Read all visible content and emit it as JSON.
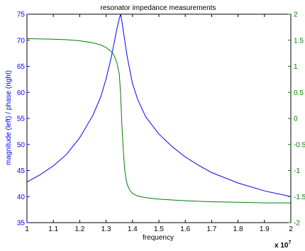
{
  "chart_data": {
    "type": "line",
    "title": "resonator impedance measurements",
    "xlabel": "frequency",
    "ylabel_left": "magnitude (left) / phase (right)",
    "x_multiplier_label": "x 10",
    "x_multiplier_exponent": "7",
    "xlim": [
      1,
      2
    ],
    "ylim_left": [
      35,
      75
    ],
    "ylim_right": [
      -2,
      2
    ],
    "x_ticks": [
      1,
      1.1,
      1.2,
      1.3,
      1.4,
      1.5,
      1.6,
      1.7,
      1.8,
      1.9,
      2
    ],
    "x_tick_labels": [
      "1",
      "1.1",
      "1.2",
      "1.3",
      "1.4",
      "1.5",
      "1.6",
      "1.7",
      "1.8",
      "1.9",
      "2"
    ],
    "y_left_ticks": [
      35,
      40,
      45,
      50,
      55,
      60,
      65,
      70,
      75
    ],
    "y_left_tick_labels": [
      "35",
      "40",
      "45",
      "50",
      "55",
      "60",
      "65",
      "70",
      "75"
    ],
    "y_right_ticks": [
      -2,
      -1.5,
      -1,
      -0.5,
      0,
      0.5,
      1,
      1.5,
      2
    ],
    "y_right_tick_labels": [
      "-2",
      "-1.5",
      "-1",
      "-0.5",
      "0",
      "0.5",
      "1",
      "1.5",
      "2"
    ],
    "grid": false,
    "colors": {
      "magnitude": "#0000ff",
      "phase": "#008000",
      "axes": "#000000"
    },
    "series": [
      {
        "axis": "left",
        "color": "#0000ff",
        "x": [
          1.0,
          1.05,
          1.1,
          1.15,
          1.2,
          1.25,
          1.28,
          1.3,
          1.32,
          1.33,
          1.34,
          1.35,
          1.355,
          1.36,
          1.37,
          1.38,
          1.4,
          1.42,
          1.45,
          1.5,
          1.55,
          1.6,
          1.65,
          1.7,
          1.8,
          1.9,
          2.0
        ],
        "values": [
          42.8,
          44.2,
          45.9,
          48.1,
          51.3,
          55.6,
          59.2,
          62.6,
          66.8,
          69.4,
          72.0,
          74.2,
          75.0,
          73.6,
          70.2,
          66.8,
          61.7,
          58.6,
          55.3,
          52.0,
          49.6,
          47.6,
          46.0,
          44.6,
          42.6,
          41.1,
          40.0
        ]
      },
      {
        "axis": "right",
        "color": "#008000",
        "x": [
          1.0,
          1.1,
          1.15,
          1.2,
          1.25,
          1.28,
          1.3,
          1.32,
          1.33,
          1.34,
          1.35,
          1.355,
          1.36,
          1.365,
          1.37,
          1.375,
          1.38,
          1.39,
          1.4,
          1.42,
          1.45,
          1.5,
          1.6,
          1.7,
          1.8,
          1.9,
          2.0
        ],
        "values": [
          1.53,
          1.52,
          1.51,
          1.49,
          1.45,
          1.41,
          1.36,
          1.28,
          1.21,
          1.08,
          0.85,
          0.45,
          -0.15,
          -0.6,
          -0.95,
          -1.15,
          -1.27,
          -1.38,
          -1.44,
          -1.49,
          -1.52,
          -1.55,
          -1.58,
          -1.6,
          -1.61,
          -1.62,
          -1.62
        ]
      }
    ]
  }
}
